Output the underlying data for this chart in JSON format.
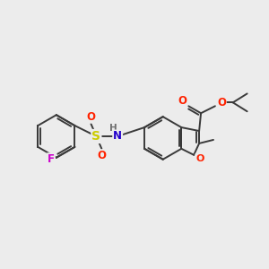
{
  "bg": "#ececec",
  "bc": "#3a3a3a",
  "lw": 1.4,
  "atom_colors": {
    "F": "#cc00cc",
    "S": "#cccc00",
    "O": "#ff2200",
    "N": "#2200cc",
    "H": "#707070"
  },
  "fs": 8.5
}
